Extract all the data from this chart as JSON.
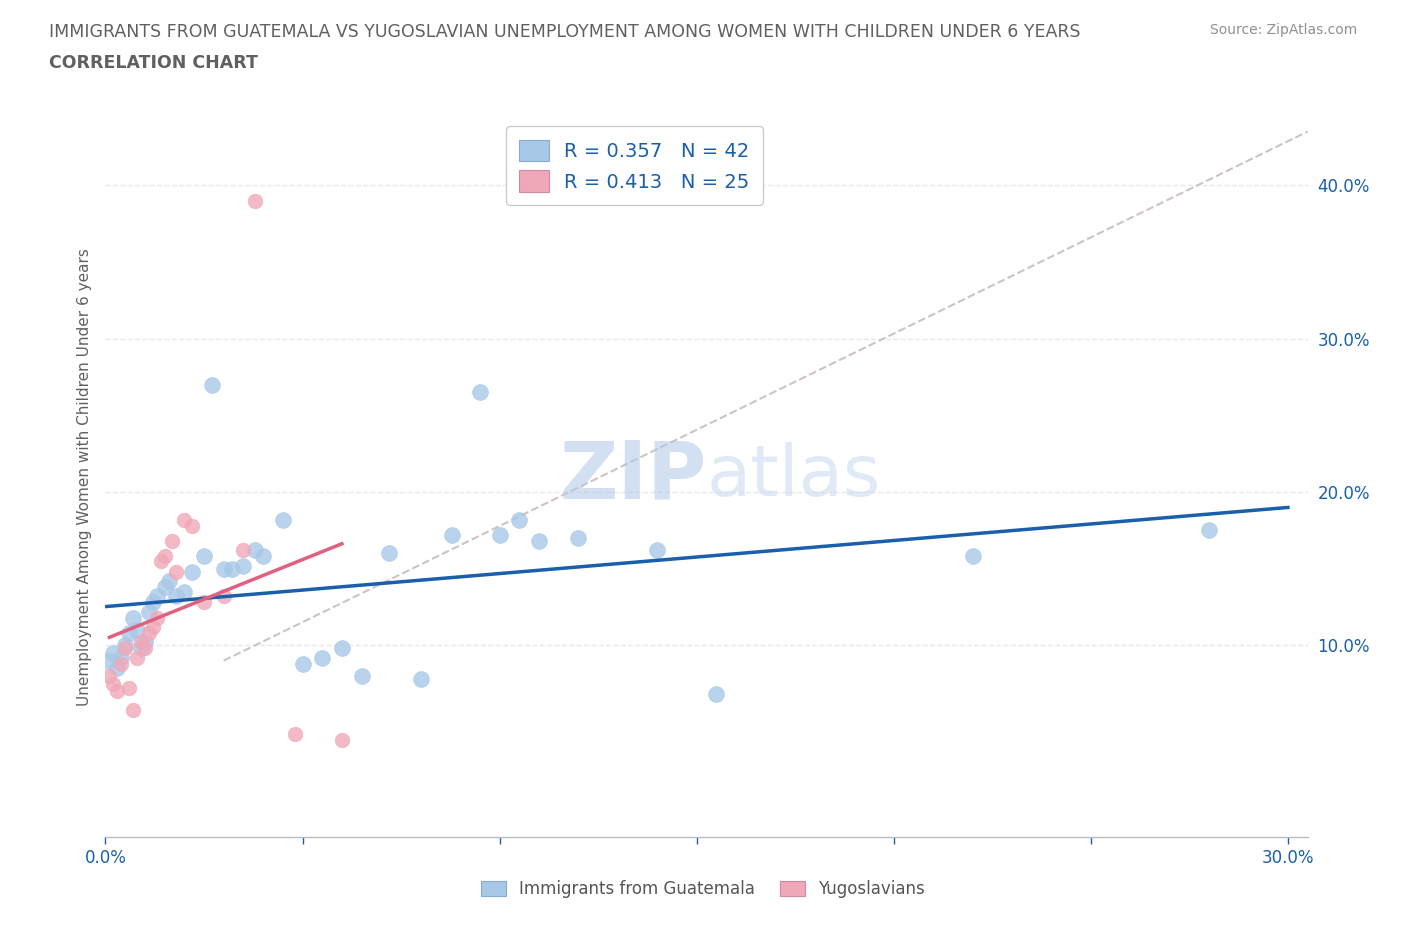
{
  "title_line1": "IMMIGRANTS FROM GUATEMALA VS YUGOSLAVIAN UNEMPLOYMENT AMONG WOMEN WITH CHILDREN UNDER 6 YEARS",
  "title_line2": "CORRELATION CHART",
  "source_text": "Source: ZipAtlas.com",
  "ylabel": "Unemployment Among Women with Children Under 6 years",
  "xlim": [
    0.0,
    0.305
  ],
  "ylim": [
    -0.025,
    0.445
  ],
  "blue_color": "#a8c8e8",
  "pink_color": "#f0a8b8",
  "blue_line_color": "#1a5faa",
  "pink_line_color": "#e06080",
  "dashed_line_color": "#c8b8b8",
  "legend_text_color": "#1a5faa",
  "title_color": "#606060",
  "source_color": "#909090",
  "watermark_color": "#ccdcf0",
  "R_blue": 0.357,
  "N_blue": 42,
  "R_pink": 0.413,
  "N_pink": 25,
  "yticks_right": [
    0.1,
    0.2,
    0.3,
    0.4
  ],
  "ytick_right_labels": [
    "10.0%",
    "20.0%",
    "30.0%",
    "40.0%"
  ],
  "blue_x": [
    0.001,
    0.002,
    0.003,
    0.004,
    0.005,
    0.006,
    0.007,
    0.008,
    0.009,
    0.01,
    0.011,
    0.012,
    0.013,
    0.015,
    0.016,
    0.018,
    0.02,
    0.022,
    0.025,
    0.027,
    0.03,
    0.032,
    0.035,
    0.038,
    0.04,
    0.045,
    0.05,
    0.055,
    0.06,
    0.065,
    0.072,
    0.08,
    0.088,
    0.095,
    0.1,
    0.105,
    0.11,
    0.12,
    0.14,
    0.155,
    0.22,
    0.28
  ],
  "blue_y": [
    0.09,
    0.095,
    0.085,
    0.092,
    0.1,
    0.108,
    0.118,
    0.11,
    0.098,
    0.102,
    0.122,
    0.128,
    0.132,
    0.138,
    0.142,
    0.132,
    0.135,
    0.148,
    0.158,
    0.27,
    0.15,
    0.15,
    0.152,
    0.162,
    0.158,
    0.182,
    0.088,
    0.092,
    0.098,
    0.08,
    0.16,
    0.078,
    0.172,
    0.265,
    0.172,
    0.182,
    0.168,
    0.17,
    0.162,
    0.068,
    0.158,
    0.175
  ],
  "pink_x": [
    0.001,
    0.002,
    0.003,
    0.004,
    0.005,
    0.006,
    0.007,
    0.008,
    0.009,
    0.01,
    0.011,
    0.012,
    0.013,
    0.014,
    0.015,
    0.017,
    0.018,
    0.02,
    0.022,
    0.025,
    0.03,
    0.035,
    0.038,
    0.048,
    0.06
  ],
  "pink_y": [
    0.08,
    0.075,
    0.07,
    0.088,
    0.098,
    0.072,
    0.058,
    0.092,
    0.102,
    0.098,
    0.108,
    0.112,
    0.118,
    0.155,
    0.158,
    0.168,
    0.148,
    0.182,
    0.178,
    0.128,
    0.132,
    0.162,
    0.39,
    0.042,
    0.038
  ],
  "grid_color": "#e8e8e8"
}
